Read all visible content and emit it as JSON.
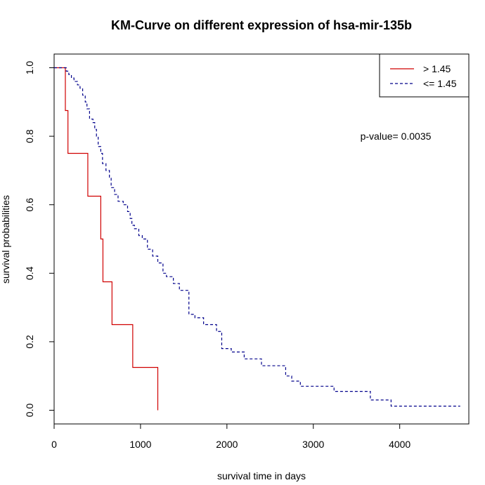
{
  "chart_data": {
    "type": "line",
    "subtype": "kaplan-meier step",
    "title": "KM-Curve on different expression of hsa-mir-135b",
    "xlabel": "survival time in days",
    "ylabel": "survival probabilities",
    "xlim": [
      0,
      4800
    ],
    "ylim": [
      -0.04,
      1.04
    ],
    "x_ticks": [
      0,
      1000,
      2000,
      3000,
      4000
    ],
    "x_tick_labels": [
      "0",
      "1000",
      "2000",
      "3000",
      "4000"
    ],
    "y_ticks": [
      0.0,
      0.2,
      0.4,
      0.6,
      0.8,
      1.0
    ],
    "y_tick_labels": [
      "0.0",
      "0.2",
      "0.4",
      "0.6",
      "0.8",
      "1.0"
    ],
    "grid": false,
    "legend_position": "top-right",
    "annotation": "p-value= 0.0035",
    "colors": {
      "high": "#d00000",
      "low": "#00008b",
      "annotation": "#1a6b1a"
    },
    "series": [
      {
        "name": "> 1.45",
        "style": "solid",
        "x": [
          0,
          130,
          160,
          390,
          540,
          565,
          670,
          910,
          1200,
          1200
        ],
        "y": [
          1.0,
          0.875,
          0.75,
          0.625,
          0.5,
          0.375,
          0.25,
          0.125,
          0.125,
          0.0
        ]
      },
      {
        "name": "<= 1.45",
        "style": "dashed",
        "x": [
          0,
          140,
          170,
          200,
          230,
          270,
          300,
          330,
          360,
          380,
          410,
          450,
          470,
          490,
          510,
          540,
          560,
          600,
          640,
          660,
          700,
          740,
          800,
          850,
          880,
          900,
          930,
          980,
          1020,
          1080,
          1140,
          1200,
          1260,
          1300,
          1380,
          1450,
          1560,
          1630,
          1730,
          1880,
          1940,
          2050,
          2200,
          2400,
          2680,
          2750,
          2850,
          3240,
          3660,
          3900,
          4700
        ],
        "y": [
          1.0,
          0.99,
          0.98,
          0.97,
          0.96,
          0.95,
          0.94,
          0.92,
          0.9,
          0.88,
          0.85,
          0.84,
          0.82,
          0.8,
          0.77,
          0.75,
          0.72,
          0.7,
          0.68,
          0.65,
          0.63,
          0.61,
          0.6,
          0.58,
          0.56,
          0.54,
          0.53,
          0.51,
          0.5,
          0.47,
          0.45,
          0.43,
          0.4,
          0.39,
          0.37,
          0.35,
          0.28,
          0.27,
          0.25,
          0.23,
          0.18,
          0.17,
          0.15,
          0.13,
          0.1,
          0.085,
          0.07,
          0.055,
          0.03,
          0.012,
          0.012
        ]
      }
    ]
  }
}
